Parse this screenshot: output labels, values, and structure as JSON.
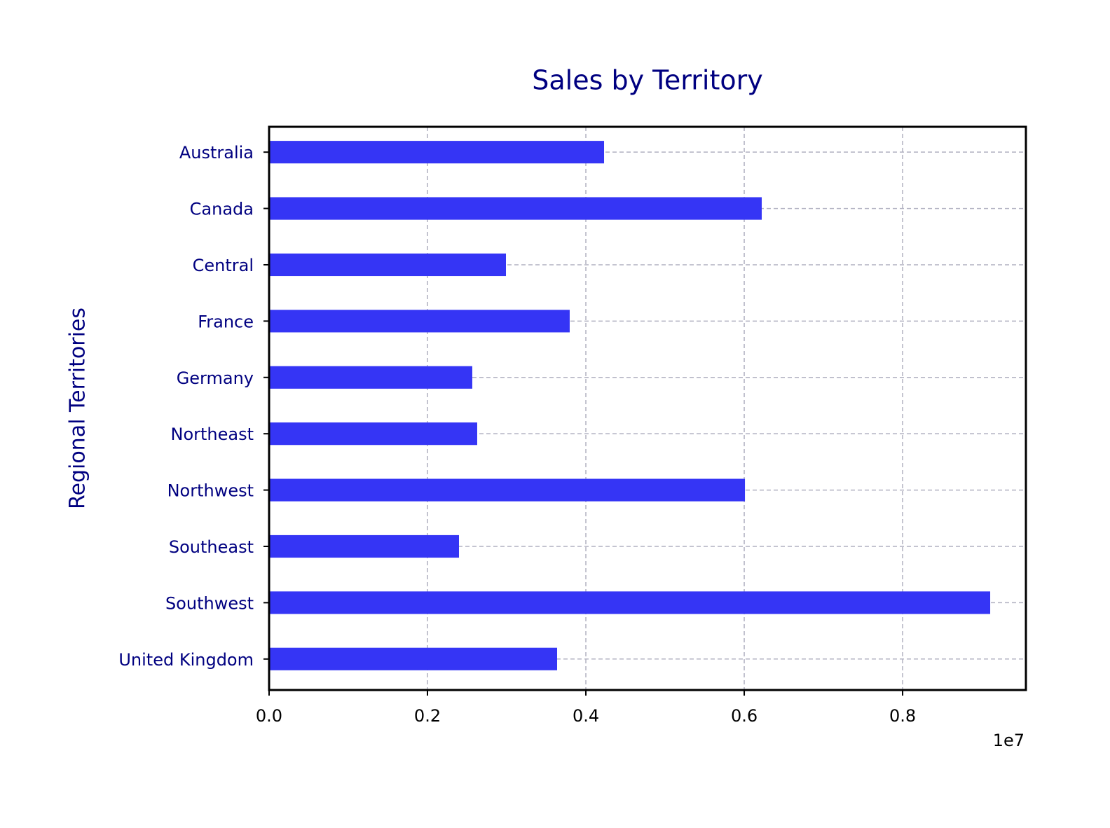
{
  "chart_data": {
    "type": "barh",
    "title": "Sales by Territory",
    "ylabel": "Regional Territories",
    "categories": [
      "Australia",
      "Canada",
      "Central",
      "France",
      "Germany",
      "Northeast",
      "Northwest",
      "Southeast",
      "Southwest",
      "United Kingdom"
    ],
    "values": [
      4230000,
      6221000,
      2991000,
      3796000,
      2566000,
      2628000,
      6009000,
      2398000,
      9106000,
      3637000
    ],
    "color": "#3535f5",
    "xlim": [
      0,
      9557000
    ],
    "xticks": [
      {
        "value": 0,
        "label": "0.0"
      },
      {
        "value": 2000000,
        "label": "0.2"
      },
      {
        "value": 4000000,
        "label": "0.4"
      },
      {
        "value": 6000000,
        "label": "0.6"
      },
      {
        "value": 8000000,
        "label": "0.8"
      }
    ],
    "x_offset_label": "1e7",
    "grid": true
  }
}
